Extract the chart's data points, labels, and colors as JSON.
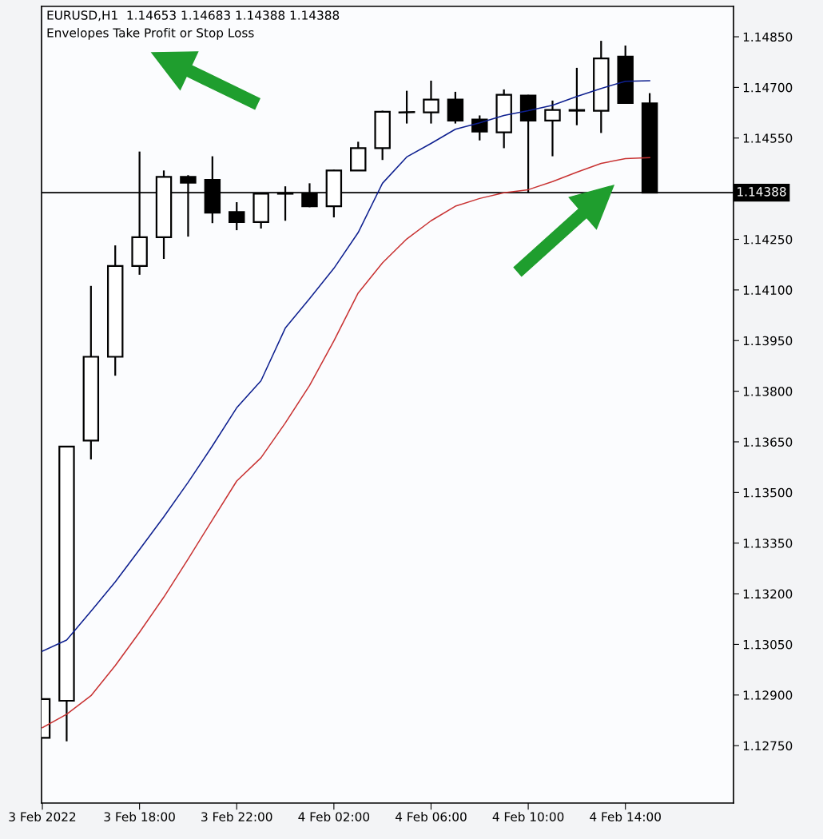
{
  "chart_data": {
    "type": "candlestick",
    "title": "EURUSD,H1  1.14653 1.14683 1.14388 1.14388",
    "subtitle": "Envelopes Take Profit or Stop Loss",
    "x": [
      "2022-02-03T14:00",
      "2022-02-03T15:00",
      "2022-02-03T16:00",
      "2022-02-03T17:00",
      "2022-02-03T18:00",
      "2022-02-03T19:00",
      "2022-02-03T20:00",
      "2022-02-03T21:00",
      "2022-02-03T22:00",
      "2022-02-03T23:00",
      "2022-02-04T00:00",
      "2022-02-04T01:00",
      "2022-02-04T02:00",
      "2022-02-04T03:00",
      "2022-02-04T04:00",
      "2022-02-04T05:00",
      "2022-02-04T06:00",
      "2022-02-04T07:00",
      "2022-02-04T08:00",
      "2022-02-04T09:00",
      "2022-02-04T10:00",
      "2022-02-04T11:00",
      "2022-02-04T12:00",
      "2022-02-04T13:00",
      "2022-02-04T14:00",
      "2022-02-04T15:00"
    ],
    "ohlc": [
      [
        1.12773,
        1.12888,
        1.12773,
        1.12888
      ],
      [
        1.12883,
        1.13636,
        1.12763,
        1.13636
      ],
      [
        1.13654,
        1.14112,
        1.13598,
        1.13902
      ],
      [
        1.13902,
        1.14232,
        1.13846,
        1.14171
      ],
      [
        1.14171,
        1.1451,
        1.14145,
        1.14256
      ],
      [
        1.14256,
        1.14454,
        1.14192,
        1.14435
      ],
      [
        1.14435,
        1.1444,
        1.14258,
        1.14418
      ],
      [
        1.14426,
        1.14496,
        1.14298,
        1.14329
      ],
      [
        1.14331,
        1.1436,
        1.14277,
        1.14301
      ],
      [
        1.14301,
        1.14385,
        1.14282,
        1.14385
      ],
      [
        1.14385,
        1.14407,
        1.14305,
        1.14387
      ],
      [
        1.14385,
        1.14416,
        1.14345,
        1.14348
      ],
      [
        1.14348,
        1.14456,
        1.14315,
        1.14454
      ],
      [
        1.14454,
        1.14539,
        1.14454,
        1.1452
      ],
      [
        1.1452,
        1.14631,
        1.14485,
        1.14628
      ],
      [
        1.14626,
        1.1469,
        1.14593,
        1.14627
      ],
      [
        1.14626,
        1.1472,
        1.14593,
        1.14664
      ],
      [
        1.14664,
        1.14687,
        1.14593,
        1.14602
      ],
      [
        1.14605,
        1.14617,
        1.14543,
        1.14569
      ],
      [
        1.14567,
        1.14694,
        1.1452,
        1.14678
      ],
      [
        1.14676,
        1.14678,
        1.14388,
        1.14602
      ],
      [
        1.14602,
        1.14661,
        1.14496,
        1.14633
      ],
      [
        1.14631,
        1.14758,
        1.14588,
        1.14633
      ],
      [
        1.14631,
        1.14838,
        1.14565,
        1.14786
      ],
      [
        1.14791,
        1.14824,
        1.14654,
        1.14654
      ],
      [
        1.14653,
        1.14683,
        1.14388,
        1.14388
      ]
    ],
    "series": [
      {
        "type": "line",
        "color": "#0d1f8f",
        "values": [
          1.1303,
          1.13063,
          1.13148,
          1.13235,
          1.13331,
          1.13428,
          1.1353,
          1.13638,
          1.13751,
          1.13831,
          1.13987,
          1.14074,
          1.14164,
          1.1427,
          1.14416,
          1.14494,
          1.14534,
          1.14576,
          1.14595,
          1.14617,
          1.14631,
          1.14647,
          1.14673,
          1.14697,
          1.14718,
          1.1472
        ]
      },
      {
        "type": "line",
        "color": "#c83232",
        "values": [
          1.12803,
          1.12843,
          1.12898,
          1.12987,
          1.13086,
          1.1319,
          1.13303,
          1.13419,
          1.13534,
          1.13603,
          1.13706,
          1.13817,
          1.13949,
          1.14091,
          1.1418,
          1.14251,
          1.14305,
          1.14348,
          1.14371,
          1.14388,
          1.14397,
          1.14421,
          1.14449,
          1.14475,
          1.14489,
          1.14492
        ]
      }
    ],
    "ref_lines": [
      {
        "axis": "y",
        "value": 1.14388,
        "label": "1.14388",
        "color": "#000000"
      }
    ],
    "xlim": [
      "2022-02-03T13:58",
      "2022-02-04T18:27"
    ],
    "xticks": [
      {
        "value": "2022-02-03T14:00",
        "label": "3 Feb 2022"
      },
      {
        "value": "2022-02-03T18:00",
        "label": "3 Feb 18:00"
      },
      {
        "value": "2022-02-03T22:00",
        "label": "3 Feb 22:00"
      },
      {
        "value": "2022-02-04T02:00",
        "label": "4 Feb 02:00"
      },
      {
        "value": "2022-02-04T06:00",
        "label": "4 Feb 06:00"
      },
      {
        "value": "2022-02-04T10:00",
        "label": "4 Feb 10:00"
      },
      {
        "value": "2022-02-04T14:00",
        "label": "4 Feb 14:00"
      }
    ],
    "ylim": [
      1.1258,
      1.1494
    ],
    "yticks": [
      {
        "value": 1.1485,
        "label": "1.14850"
      },
      {
        "value": 1.147,
        "label": "1.14700"
      },
      {
        "value": 1.1455,
        "label": "1.14550"
      },
      {
        "value": 1.1425,
        "label": "1.14250"
      },
      {
        "value": 1.141,
        "label": "1.14100"
      },
      {
        "value": 1.1395,
        "label": "1.13950"
      },
      {
        "value": 1.138,
        "label": "1.13800"
      },
      {
        "value": 1.1365,
        "label": "1.13650"
      },
      {
        "value": 1.135,
        "label": "1.13500"
      },
      {
        "value": 1.1335,
        "label": "1.13350"
      },
      {
        "value": 1.132,
        "label": "1.13200"
      },
      {
        "value": 1.1305,
        "label": "1.13050"
      },
      {
        "value": 1.129,
        "label": "1.12900"
      },
      {
        "value": 1.1275,
        "label": "1.12750"
      }
    ],
    "grid": false
  }
}
